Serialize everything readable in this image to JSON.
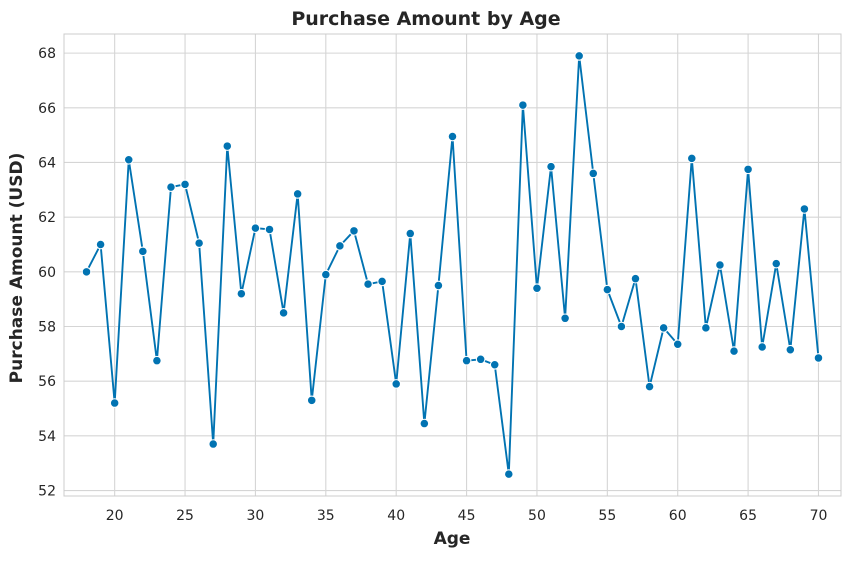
{
  "chart_data": {
    "type": "line",
    "title": "Purchase Amount by Age",
    "xlabel": "Age",
    "ylabel": "Purchase Amount (USD)",
    "xlim": [
      16.4,
      71.6
    ],
    "ylim": [
      51.8,
      68.7
    ],
    "xticks": [
      20,
      25,
      30,
      35,
      40,
      45,
      50,
      55,
      60,
      65,
      70
    ],
    "yticks": [
      52,
      54,
      56,
      58,
      60,
      62,
      64,
      66,
      68
    ],
    "grid": true,
    "marker": "circle",
    "colors": {
      "line": "#0173B2",
      "marker_edge": "#ffffff",
      "grid": "#d5d5d5",
      "spine": "#cccccc",
      "background": "#ffffff"
    },
    "series": [
      {
        "x": [
          18,
          19,
          20,
          21,
          22,
          23,
          24,
          25,
          26,
          27,
          28,
          29,
          30,
          31,
          32,
          33,
          34,
          35,
          36,
          37,
          38,
          39,
          40,
          41,
          42,
          43,
          44,
          45,
          46,
          47,
          48,
          49,
          50,
          51,
          52,
          53,
          54,
          55,
          56,
          57,
          58,
          59,
          60,
          61,
          62,
          63,
          64,
          65,
          66,
          67,
          68,
          69,
          70
        ],
        "values": [
          60.0,
          61.0,
          55.2,
          64.1,
          60.75,
          56.75,
          63.1,
          63.2,
          61.05,
          53.7,
          64.6,
          59.2,
          61.6,
          61.55,
          58.5,
          62.85,
          55.3,
          59.9,
          60.95,
          61.5,
          59.55,
          59.65,
          55.9,
          61.4,
          54.45,
          59.5,
          64.95,
          56.75,
          56.8,
          56.6,
          52.6,
          66.1,
          59.4,
          63.85,
          58.3,
          67.9,
          63.6,
          59.35,
          58.0,
          59.75,
          55.8,
          57.95,
          57.35,
          64.15,
          57.95,
          60.25,
          57.1,
          63.75,
          57.25,
          60.3,
          57.15,
          62.3,
          56.85
        ]
      }
    ]
  }
}
